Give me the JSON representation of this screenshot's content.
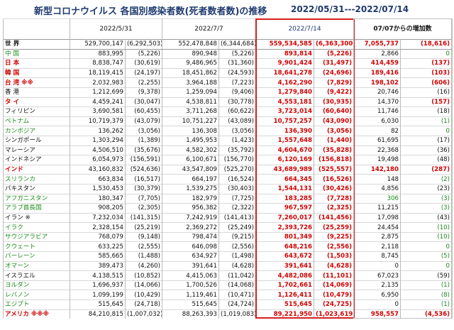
{
  "title": "新型コロナウイルス 各国別感染者数(死者数者数)の推移",
  "range": "2022/05/31---2022/07/14",
  "headers": {
    "name": "",
    "d1": "2022/5/31",
    "d2": "2022/7/7",
    "d3": "2022/7/14",
    "inc": "07/07からの増加数"
  },
  "colors": {
    "accent": "#1f3a6e",
    "red": "#d00000",
    "green": "#1a8a1a",
    "frame": "#d42020"
  },
  "world": {
    "name": "世 界",
    "c1": "529,700,147",
    "d1": "(6,292,503)",
    "c2": "552,478,848",
    "d2": "(6,344,684)",
    "c3": "559,534,585",
    "d3": "(6,363,300)",
    "ic": "7,055,737",
    "id": "(18,616)"
  },
  "rows": [
    {
      "name": "中 国",
      "nc": "grn",
      "bold": false,
      "c1": "883,995",
      "d1": "(5,226)",
      "c2": "890,948",
      "d2": "(5,226)",
      "c3": "893,814",
      "d3": "(5,226)",
      "ic": "2,866",
      "icc": "blk",
      "id": "0",
      "idc": "grn"
    },
    {
      "name": "日 本",
      "nc": "red",
      "bold": true,
      "c1": "8,838,747",
      "d1": "(30,619)",
      "c2": "9,486,965",
      "d2": "(31,360)",
      "c3": "9,901,424",
      "d3": "(31,497)",
      "ic": "414,459",
      "icc": "red",
      "id": "(137)",
      "idc": "red"
    },
    {
      "name": "韓 国",
      "nc": "red",
      "bold": true,
      "c1": "18,119,415",
      "d1": "(24,197)",
      "c2": "18,451,862",
      "d2": "(24,593)",
      "c3": "18,641,278",
      "d3": "(24,696)",
      "ic": "189,416",
      "icc": "red",
      "id": "(103)",
      "idc": "red"
    },
    {
      "name": "台 湾 ※※",
      "nc": "red",
      "bold": true,
      "c1": "2,032,983",
      "d1": "(2,255)",
      "c2": "3,964,188",
      "d2": "(7,223)",
      "c3": "4,162,290",
      "d3": "(7,829)",
      "ic": "198,102",
      "icc": "red",
      "id": "(606)",
      "idc": "red"
    },
    {
      "name": "香 港",
      "nc": "blk",
      "bold": false,
      "c1": "1,212,699",
      "d1": "(9,378)",
      "c2": "1,259,094",
      "d2": "(9,406)",
      "c3": "1,279,840",
      "d3": "(9,422)",
      "ic": "20,746",
      "icc": "blk",
      "id": "(16)",
      "idc": "blk"
    },
    {
      "name": "タ イ",
      "nc": "red",
      "bold": true,
      "c1": "4,459,241",
      "d1": "(30,047)",
      "c2": "4,538,811",
      "d2": "(30,778)",
      "c3": "4,553,181",
      "d3": "(30,935)",
      "ic": "14,370",
      "icc": "blk",
      "id": "(157)",
      "idc": "red"
    },
    {
      "name": "フィリピン",
      "nc": "blk",
      "bold": false,
      "c1": "3,690,581",
      "d1": "(60,455)",
      "c2": "3,711,268",
      "d2": "(60,622)",
      "c3": "3,723,014",
      "d3": "(60,640)",
      "ic": "11,746",
      "icc": "blk",
      "id": "(18)",
      "idc": "blk"
    },
    {
      "name": "ベトナム",
      "nc": "grn",
      "bold": false,
      "c1": "10,719,379",
      "d1": "(43,079)",
      "c2": "10,751,227",
      "d2": "(43,089)",
      "c3": "10,757,257",
      "d3": "(43,090)",
      "ic": "6,030",
      "icc": "blk",
      "id": "(1)",
      "idc": "grn"
    },
    {
      "name": "カンボジア",
      "nc": "grn",
      "bold": false,
      "c1": "136,262",
      "d1": "(3,056)",
      "c2": "136,308",
      "d2": "(3,056)",
      "c3": "136,390",
      "d3": "(3,056)",
      "ic": "82",
      "icc": "blk",
      "id": "0",
      "idc": "grn"
    },
    {
      "name": "シンガポール",
      "nc": "blk",
      "bold": false,
      "c1": "1,303,294",
      "d1": "(1,389)",
      "c2": "1,495,953",
      "d2": "(1,423)",
      "c3": "1,557,648",
      "d3": "(1,440)",
      "ic": "61,695",
      "icc": "blk",
      "id": "(17)",
      "idc": "blk"
    },
    {
      "name": "マレーシア",
      "nc": "blk",
      "bold": false,
      "c1": "4,506,510",
      "d1": "(35,676)",
      "c2": "4,582,302",
      "d2": "(35,792)",
      "c3": "4,604,670",
      "d3": "(35,828)",
      "ic": "22,368",
      "icc": "blk",
      "id": "(36)",
      "idc": "blk"
    },
    {
      "name": "インドネシア",
      "nc": "blk",
      "bold": false,
      "c1": "6,054,973",
      "d1": "(156,591)",
      "c2": "6,100,671",
      "d2": "(156,770)",
      "c3": "6,120,169",
      "d3": "(156,818)",
      "ic": "19,498",
      "icc": "blk",
      "id": "(48)",
      "idc": "blk"
    },
    {
      "name": "インド",
      "nc": "red",
      "bold": true,
      "c1": "43,160,832",
      "d1": "(524,636)",
      "c2": "43,547,809",
      "d2": "(525,270)",
      "c3": "43,689,989",
      "d3": "(525,557)",
      "ic": "142,180",
      "icc": "red",
      "id": "(287)",
      "idc": "red"
    },
    {
      "name": "スリランカ",
      "nc": "grn",
      "bold": false,
      "c1": "663,834",
      "d1": "(16,517)",
      "c2": "664,197",
      "d2": "(16,524)",
      "c3": "664,345",
      "d3": "(16,526)",
      "ic": "148",
      "icc": "blk",
      "id": "(2)",
      "idc": "grn"
    },
    {
      "name": "パキスタン",
      "nc": "blk",
      "bold": false,
      "c1": "1,530,453",
      "d1": "(30,379)",
      "c2": "1,539,275",
      "d2": "(30,403)",
      "c3": "1,544,131",
      "d3": "(30,426)",
      "ic": "4,856",
      "icc": "blk",
      "id": "(23)",
      "idc": "blk"
    },
    {
      "name": "アフガニスタン",
      "nc": "grn",
      "bold": false,
      "c1": "180,347",
      "d1": "(7,705)",
      "c2": "182,979",
      "d2": "(7,725)",
      "c3": "183,285",
      "d3": "(7,728)",
      "ic": "306",
      "icc": "grn",
      "id": "(3)",
      "idc": "grn"
    },
    {
      "name": "アラブ首長国",
      "nc": "grn",
      "bold": false,
      "c1": "908,205",
      "d1": "(2,305)",
      "c2": "956,382",
      "d2": "(2,322)",
      "c3": "967,597",
      "d3": "(2,325)",
      "ic": "11,215",
      "icc": "blk",
      "id": "(3)",
      "idc": "grn"
    },
    {
      "name": "イラン ※",
      "nc": "blk",
      "bold": false,
      "c1": "7,232,034",
      "d1": "(141,315)",
      "c2": "7,242,919",
      "d2": "(141,413)",
      "c3": "7,260,017",
      "d3": "(141,456)",
      "ic": "17,098",
      "icc": "blk",
      "id": "(43)",
      "idc": "blk"
    },
    {
      "name": "イラク",
      "nc": "grn",
      "bold": false,
      "c1": "2,328,154",
      "d1": "(25,219)",
      "c2": "2,369,272",
      "d2": "(25,249)",
      "c3": "2,393,726",
      "d3": "(25,259)",
      "ic": "24,454",
      "icc": "blk",
      "id": "(10)",
      "idc": "grn"
    },
    {
      "name": "サウジアラビア",
      "nc": "grn",
      "bold": false,
      "c1": "768,079",
      "d1": "(9,148)",
      "c2": "798,474",
      "d2": "(9,215)",
      "c3": "801,349",
      "d3": "(9,225)",
      "ic": "2,875",
      "icc": "blk",
      "id": "(10)",
      "idc": "grn"
    },
    {
      "name": "クウェート",
      "nc": "grn",
      "bold": false,
      "c1": "633,225",
      "d1": "(2,555)",
      "c2": "646,098",
      "d2": "(2,556)",
      "c3": "648,216",
      "d3": "(2,556)",
      "ic": "2,118",
      "icc": "blk",
      "id": "0",
      "idc": "grn"
    },
    {
      "name": "バーレーン",
      "nc": "grn",
      "bold": false,
      "c1": "585,665",
      "d1": "(1,488)",
      "c2": "634,927",
      "d2": "(1,498)",
      "c3": "643,672",
      "d3": "(1,503)",
      "ic": "8,745",
      "icc": "blk",
      "id": "(5)",
      "idc": "grn"
    },
    {
      "name": "オマーン",
      "nc": "grn",
      "bold": false,
      "c1": "389,473",
      "d1": "(4,260)",
      "c2": "391,641",
      "d2": "(4,628)",
      "c3": "391,641",
      "d3": "(4,628)",
      "ic": "0",
      "icc": "blk",
      "id": "0",
      "idc": "grn"
    },
    {
      "name": "イスラエル",
      "nc": "blk",
      "bold": false,
      "c1": "4,138,515",
      "d1": "(10,852)",
      "c2": "4,415,063",
      "d2": "(11,042)",
      "c3": "4,482,086",
      "d3": "(11,101)",
      "ic": "67,023",
      "icc": "blk",
      "id": "(59)",
      "idc": "blk"
    },
    {
      "name": "ヨルダン",
      "nc": "grn",
      "bold": false,
      "c1": "1,696,937",
      "d1": "(14,066)",
      "c2": "1,700,526",
      "d2": "(14,068)",
      "c3": "1,702,661",
      "d3": "(14,069)",
      "ic": "2,135",
      "icc": "blk",
      "id": "(1)",
      "idc": "grn"
    },
    {
      "name": "レバノン",
      "nc": "grn",
      "bold": false,
      "c1": "1,099,199",
      "d1": "(10,429)",
      "c2": "1,119,461",
      "d2": "(10,471)",
      "c3": "1,126,411",
      "d3": "(10,479)",
      "ic": "6,950",
      "icc": "blk",
      "id": "(8)",
      "idc": "grn"
    },
    {
      "name": "エジプト",
      "nc": "grn",
      "bold": false,
      "c1": "515,645",
      "d1": "(24,718)",
      "c2": "515,645",
      "d2": "(24,724)",
      "c3": "515,645",
      "d3": "(24,725)",
      "ic": "0",
      "icc": "blk",
      "id": "(1)",
      "idc": "grn"
    },
    {
      "name": "アメリカ ※※※",
      "nc": "red",
      "bold": true,
      "c1": "84,210,815",
      "d1": "(1,007,032)",
      "c2": "88,263,393",
      "d2": "(1,019,083)",
      "c3": "89,221,950",
      "d3": "(1,023,619)",
      "ic": "958,557",
      "icc": "red",
      "id": "(4,536)",
      "idc": "red"
    }
  ]
}
